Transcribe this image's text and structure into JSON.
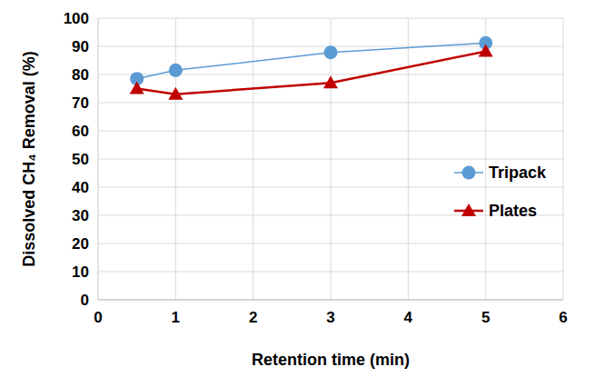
{
  "chart_data": {
    "type": "line",
    "x_label": "Retention time (min)",
    "y_label": "Dissolved CH₄ Removal (%)",
    "x": [
      0.5,
      1,
      3,
      5
    ],
    "series": [
      {
        "name": "Tripack",
        "color": "#5b9bd5",
        "marker": "circle",
        "values": [
          78.5,
          81.5,
          87.8,
          91.2
        ]
      },
      {
        "name": "Plates",
        "color": "#c00000",
        "marker": "triangle",
        "values": [
          75,
          73,
          77,
          88.2
        ]
      }
    ],
    "xlim": [
      0,
      6
    ],
    "xticks": [
      0,
      1,
      2,
      3,
      4,
      5,
      6
    ],
    "ylim": [
      0,
      100
    ],
    "yticks": [
      0,
      10,
      20,
      30,
      40,
      50,
      60,
      70,
      80,
      90,
      100
    ],
    "grid": true,
    "legend": "right"
  }
}
